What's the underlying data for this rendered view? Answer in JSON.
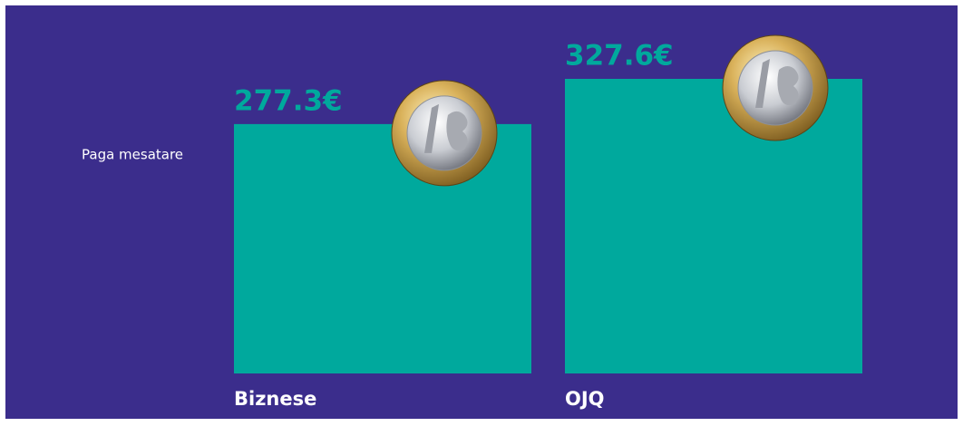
{
  "chart_data": {
    "type": "bar",
    "ylabel": "Paga mesatare",
    "categories": [
      "Biznese",
      "OJQ"
    ],
    "values": [
      277.3,
      327.6
    ],
    "value_labels": [
      "277.3€",
      "327.6€"
    ],
    "color": "#00a99d",
    "background": "#3b2d8c"
  }
}
